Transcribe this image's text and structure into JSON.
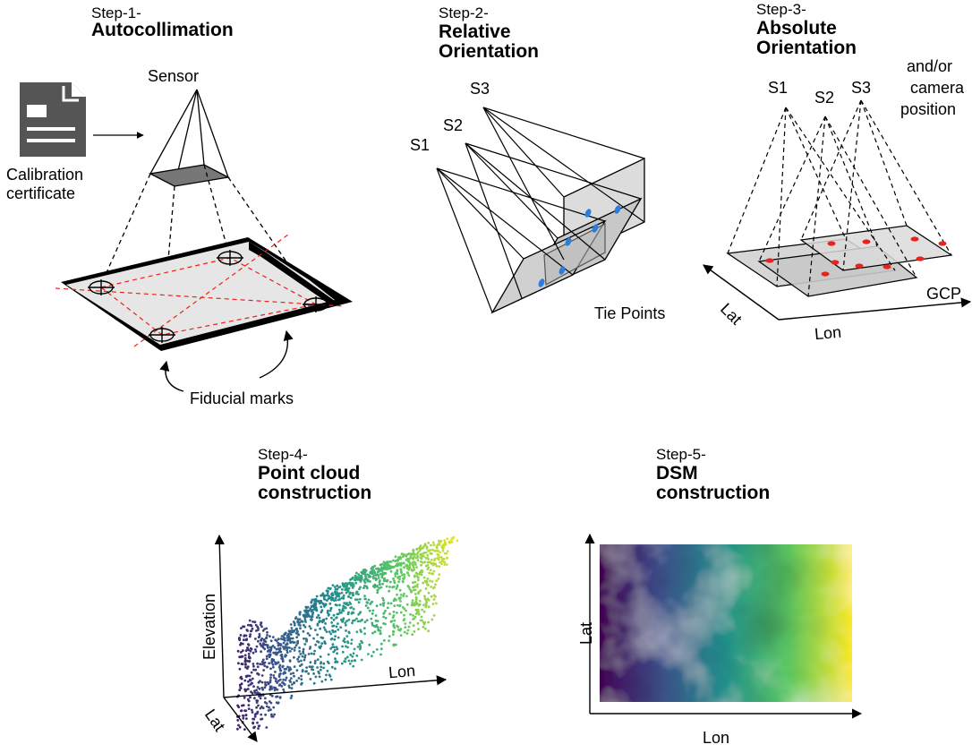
{
  "steps": [
    {
      "step": "Step-1-",
      "title_lines": [
        "Autocollimation"
      ]
    },
    {
      "step": "Step-2-",
      "title_lines": [
        "Relative",
        "Orientation"
      ]
    },
    {
      "step": "Step-3-",
      "title_lines": [
        "Absolute",
        "Orientation"
      ]
    },
    {
      "step": "Step-4-",
      "title_lines": [
        "Point cloud",
        "construction"
      ]
    },
    {
      "step": "Step-5-",
      "title_lines": [
        "DSM",
        "construction"
      ]
    }
  ],
  "step1": {
    "sensor": "Sensor",
    "certificate_lines": [
      "Calibration",
      "certificate"
    ],
    "fiducial": "Fiducial marks",
    "icons": [
      "document-icon",
      "crosshair-mark-icon"
    ]
  },
  "step2": {
    "stations": [
      "S1",
      "S2",
      "S3"
    ],
    "tie_points": "Tie Points",
    "tie_color": "#2a7ee0"
  },
  "step3": {
    "stations": [
      "S1",
      "S2",
      "S3"
    ],
    "camera_lines": [
      "and/or",
      "camera",
      "position"
    ],
    "camera_color": "#3cb44b",
    "gcp": "GCP",
    "gcp_color": "#e8231b",
    "lat": "Lat",
    "lon": "Lon"
  },
  "step4": {
    "elevation": "Elevation",
    "lon": "Lon",
    "lat": "Lat",
    "colormap": "viridis"
  },
  "step5": {
    "lat": "Lat",
    "lon": "Lon",
    "colormap": "viridis"
  }
}
